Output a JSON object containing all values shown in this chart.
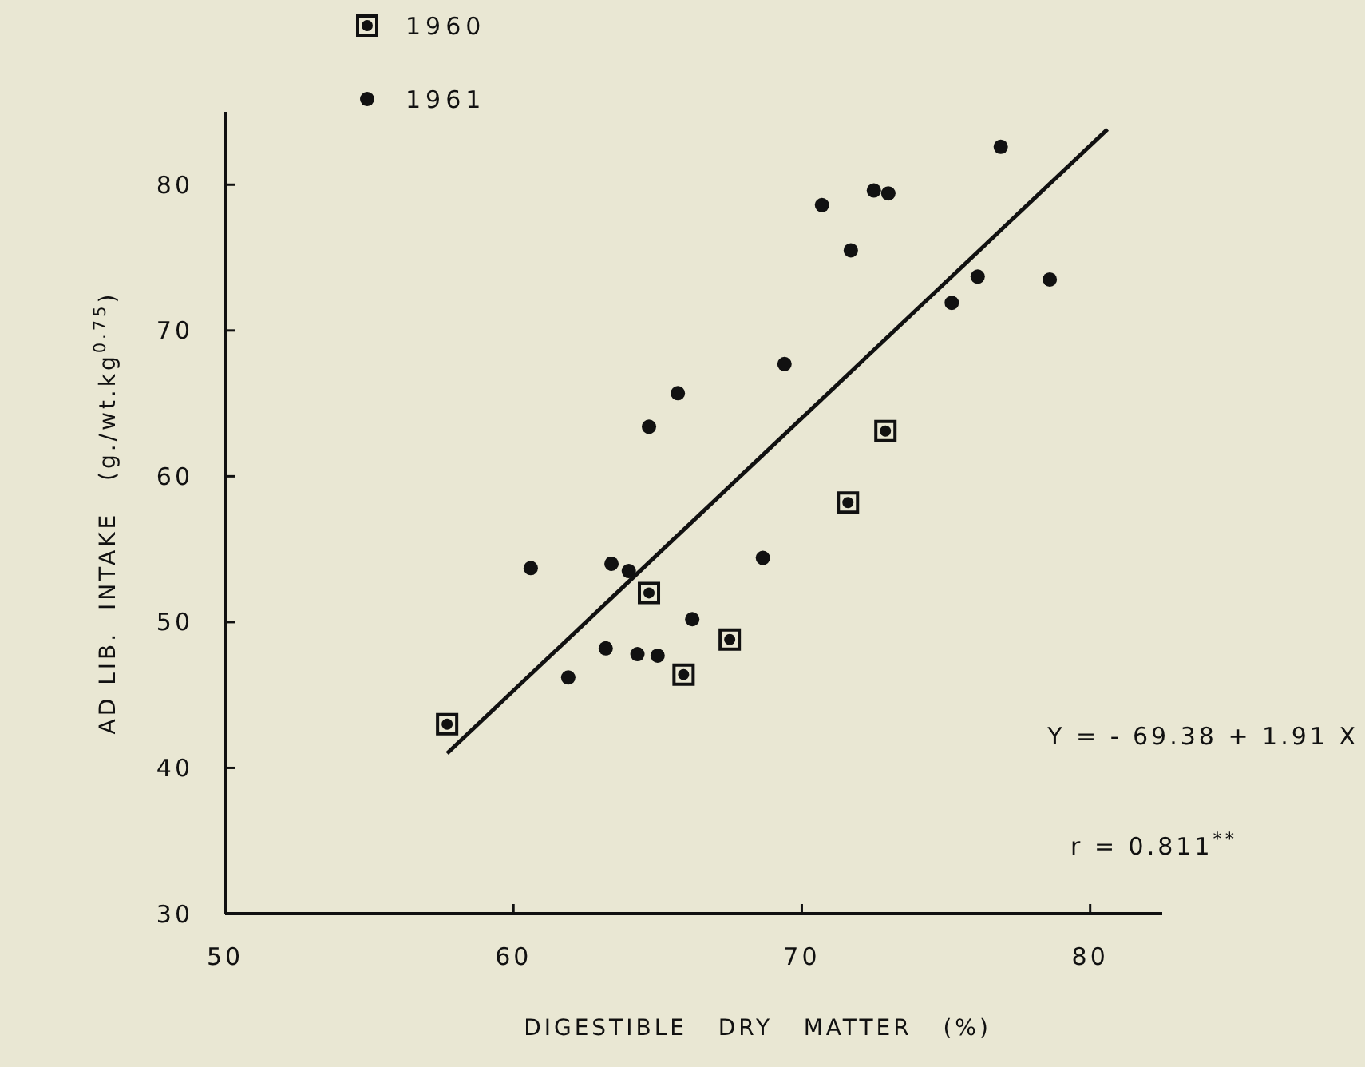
{
  "chart_data": {
    "type": "scatter",
    "xlabel": "DIGESTIBLE   DRY   MATTER   (%)",
    "ylabel": "AD LIB.  INTAKE   (g./wt.kg$^{0.75}$)",
    "xlim": [
      50,
      82.5
    ],
    "ylim": [
      30,
      85
    ],
    "xticks": [
      50,
      60,
      70,
      80
    ],
    "yticks": [
      30,
      40,
      50,
      60,
      70,
      80
    ],
    "grid": false,
    "legend": "top left",
    "series": [
      {
        "name": "1960",
        "color": "#111111",
        "marker": "square",
        "x": [
          57.7,
          64.7,
          65.9,
          67.5,
          71.6,
          72.9
        ],
        "values": [
          43.0,
          52.0,
          46.4,
          48.8,
          58.2,
          63.1
        ]
      },
      {
        "name": "1961",
        "color": "#111111",
        "marker": "circle",
        "x": [
          60.6,
          63.4,
          64.0,
          66.2,
          63.2,
          64.3,
          65.0,
          61.9,
          68.65,
          76.9,
          72.5,
          73.0,
          70.7,
          71.7,
          76.1,
          78.6,
          75.2,
          69.4,
          65.7,
          64.7
        ],
        "values": [
          53.7,
          54.0,
          53.5,
          50.2,
          48.2,
          47.8,
          47.7,
          46.2,
          54.4,
          82.6,
          79.6,
          79.4,
          78.6,
          75.5,
          73.7,
          73.5,
          71.9,
          67.7,
          65.7,
          63.4
        ]
      },
      {
        "type": "line",
        "color": "#111111",
        "marker": "none",
        "line_style": "solid",
        "x": [
          57.7,
          80.6
        ],
        "values": [
          41.0,
          83.8
        ]
      }
    ],
    "annotations": [
      "Y = - 69.38 + 1.91 X",
      "r = 0.811$^{**}$"
    ]
  }
}
